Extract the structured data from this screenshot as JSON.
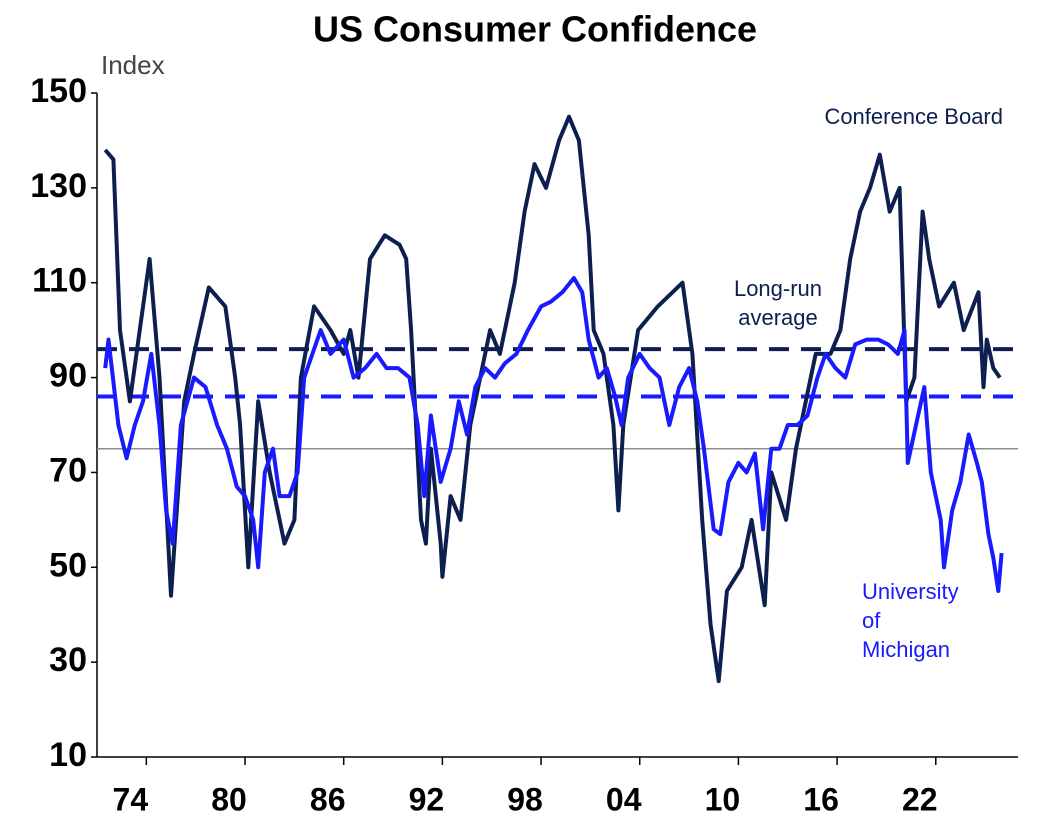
{
  "chart_data": {
    "type": "line",
    "title": "US Consumer Confidence",
    "y_label": "Index",
    "xlim": [
      1971,
      2027
    ],
    "xticks": [
      {
        "value": 1974,
        "label": "74"
      },
      {
        "value": 1980,
        "label": "80"
      },
      {
        "value": 1986,
        "label": "86"
      },
      {
        "value": 1992,
        "label": "92"
      },
      {
        "value": 1998,
        "label": "98"
      },
      {
        "value": 2004,
        "label": "04"
      },
      {
        "value": 2010,
        "label": "10"
      },
      {
        "value": 2016,
        "label": "16"
      },
      {
        "value": 2022,
        "label": "22"
      }
    ],
    "ylim": [
      10,
      150
    ],
    "yticks": [
      10,
      30,
      50,
      70,
      90,
      110,
      130,
      150
    ],
    "reference_lines": [
      {
        "value": 96,
        "color": "#0d1f4e",
        "style": "dashed"
      },
      {
        "value": 86,
        "color": "#1a1aff",
        "style": "dashed"
      },
      {
        "value": 75,
        "color": "#8c8c8c",
        "style": "solid"
      }
    ],
    "annotations": [
      {
        "lines": [
          "Conference Board"
        ],
        "color": "#0d1f4e"
      },
      {
        "lines": [
          "Long-run",
          "average"
        ],
        "color": "#0d1f4e"
      },
      {
        "lines": [
          "University",
          "of",
          "Michigan"
        ],
        "color": "#1a1aff"
      }
    ],
    "series": [
      {
        "name": "Conference Board",
        "color": "#0d1f4e",
        "x": [
          1971.5,
          1972.0,
          1972.4,
          1973.0,
          1974.2,
          1974.8,
          1975.5,
          1976.3,
          1976.9,
          1977.8,
          1978.8,
          1979.4,
          1979.7,
          1980.2,
          1980.8,
          1981.5,
          1982.4,
          1983.0,
          1983.4,
          1984.2,
          1985.2,
          1986.0,
          1986.4,
          1986.9,
          1987.6,
          1988.5,
          1989.4,
          1989.8,
          1990.1,
          1990.7,
          1991.0,
          1991.3,
          1991.9,
          1992.0,
          1992.5,
          1993.1,
          1993.7,
          1994.3,
          1994.9,
          1995.5,
          1996.4,
          1997.0,
          1997.6,
          1998.3,
          1999.1,
          1999.7,
          2000.3,
          2000.9,
          2001.2,
          2001.8,
          2002.4,
          2002.7,
          2003.0,
          2003.9,
          2005.1,
          2006.6,
          2007.2,
          2007.8,
          2008.3,
          2008.8,
          2009.3,
          2010.2,
          2010.8,
          2011.6,
          2012.0,
          2012.9,
          2013.5,
          2014.1,
          2014.7,
          2015.6,
          2016.2,
          2016.8,
          2017.4,
          2018.0,
          2018.6,
          2019.2,
          2019.8,
          2020.2,
          2020.7,
          2021.2,
          2021.6,
          2022.2,
          2023.1,
          2023.7,
          2024.6,
          2024.9,
          2025.1,
          2025.5,
          2025.9
        ],
        "values": [
          138,
          136,
          100,
          85,
          115,
          90,
          44,
          85,
          95,
          109,
          105,
          90,
          80,
          50,
          85,
          70,
          55,
          60,
          90,
          105,
          100,
          95,
          100,
          90,
          115,
          120,
          118,
          115,
          100,
          60,
          55,
          75,
          55,
          48,
          65,
          60,
          80,
          90,
          100,
          95,
          110,
          125,
          135,
          130,
          140,
          145,
          140,
          120,
          100,
          95,
          80,
          62,
          80,
          100,
          105,
          110,
          95,
          60,
          38,
          26,
          45,
          50,
          60,
          42,
          70,
          60,
          75,
          85,
          95,
          95,
          100,
          115,
          125,
          130,
          137,
          125,
          130,
          85,
          90,
          125,
          115,
          105,
          110,
          100,
          108,
          88,
          98,
          92,
          90
        ]
      },
      {
        "name": "University of Michigan",
        "color": "#1a1aff",
        "x": [
          1971.5,
          1971.7,
          1972.3,
          1972.8,
          1973.3,
          1973.8,
          1974.3,
          1974.8,
          1975.2,
          1975.6,
          1976.1,
          1976.9,
          1977.6,
          1978.3,
          1978.9,
          1979.5,
          1980.0,
          1980.5,
          1980.8,
          1981.2,
          1981.7,
          1982.1,
          1982.7,
          1983.2,
          1983.6,
          1984.1,
          1984.6,
          1985.2,
          1986.0,
          1986.6,
          1987.3,
          1988.0,
          1988.6,
          1989.3,
          1990.0,
          1990.5,
          1990.9,
          1991.3,
          1991.9,
          1992.5,
          1993.0,
          1993.5,
          1994.0,
          1994.6,
          1995.2,
          1995.8,
          1996.5,
          1997.2,
          1998.0,
          1998.6,
          1999.3,
          2000.0,
          2000.5,
          2000.9,
          2001.5,
          2002.0,
          2002.5,
          2002.9,
          2003.3,
          2004.0,
          2004.6,
          2005.2,
          2005.8,
          2006.4,
          2007.0,
          2007.5,
          2007.9,
          2008.5,
          2008.9,
          2009.4,
          2010.0,
          2010.5,
          2011.0,
          2011.5,
          2012.0,
          2012.5,
          2013.0,
          2013.6,
          2014.2,
          2014.8,
          2015.3,
          2015.9,
          2016.5,
          2017.1,
          2017.8,
          2018.5,
          2019.1,
          2019.7,
          2020.1,
          2020.3,
          2020.8,
          2021.3,
          2021.7,
          2022.3,
          2022.5,
          2023.0,
          2023.5,
          2024.0,
          2024.5,
          2024.8,
          2025.2,
          2025.5,
          2025.8,
          2026.0
        ],
        "values": [
          92,
          98,
          80,
          73,
          80,
          85,
          95,
          80,
          62,
          55,
          80,
          90,
          88,
          80,
          75,
          67,
          65,
          60,
          50,
          70,
          75,
          65,
          65,
          70,
          90,
          95,
          100,
          95,
          98,
          90,
          92,
          95,
          92,
          92,
          90,
          80,
          65,
          82,
          68,
          75,
          85,
          78,
          88,
          92,
          90,
          93,
          95,
          100,
          105,
          106,
          108,
          111,
          108,
          98,
          90,
          92,
          86,
          80,
          90,
          95,
          92,
          90,
          80,
          88,
          92,
          85,
          75,
          58,
          57,
          68,
          72,
          70,
          74,
          58,
          75,
          75,
          80,
          80,
          82,
          90,
          95,
          92,
          90,
          97,
          98,
          98,
          97,
          95,
          100,
          72,
          80,
          88,
          70,
          60,
          50,
          62,
          68,
          78,
          72,
          68,
          57,
          52,
          45,
          53
        ]
      }
    ]
  }
}
